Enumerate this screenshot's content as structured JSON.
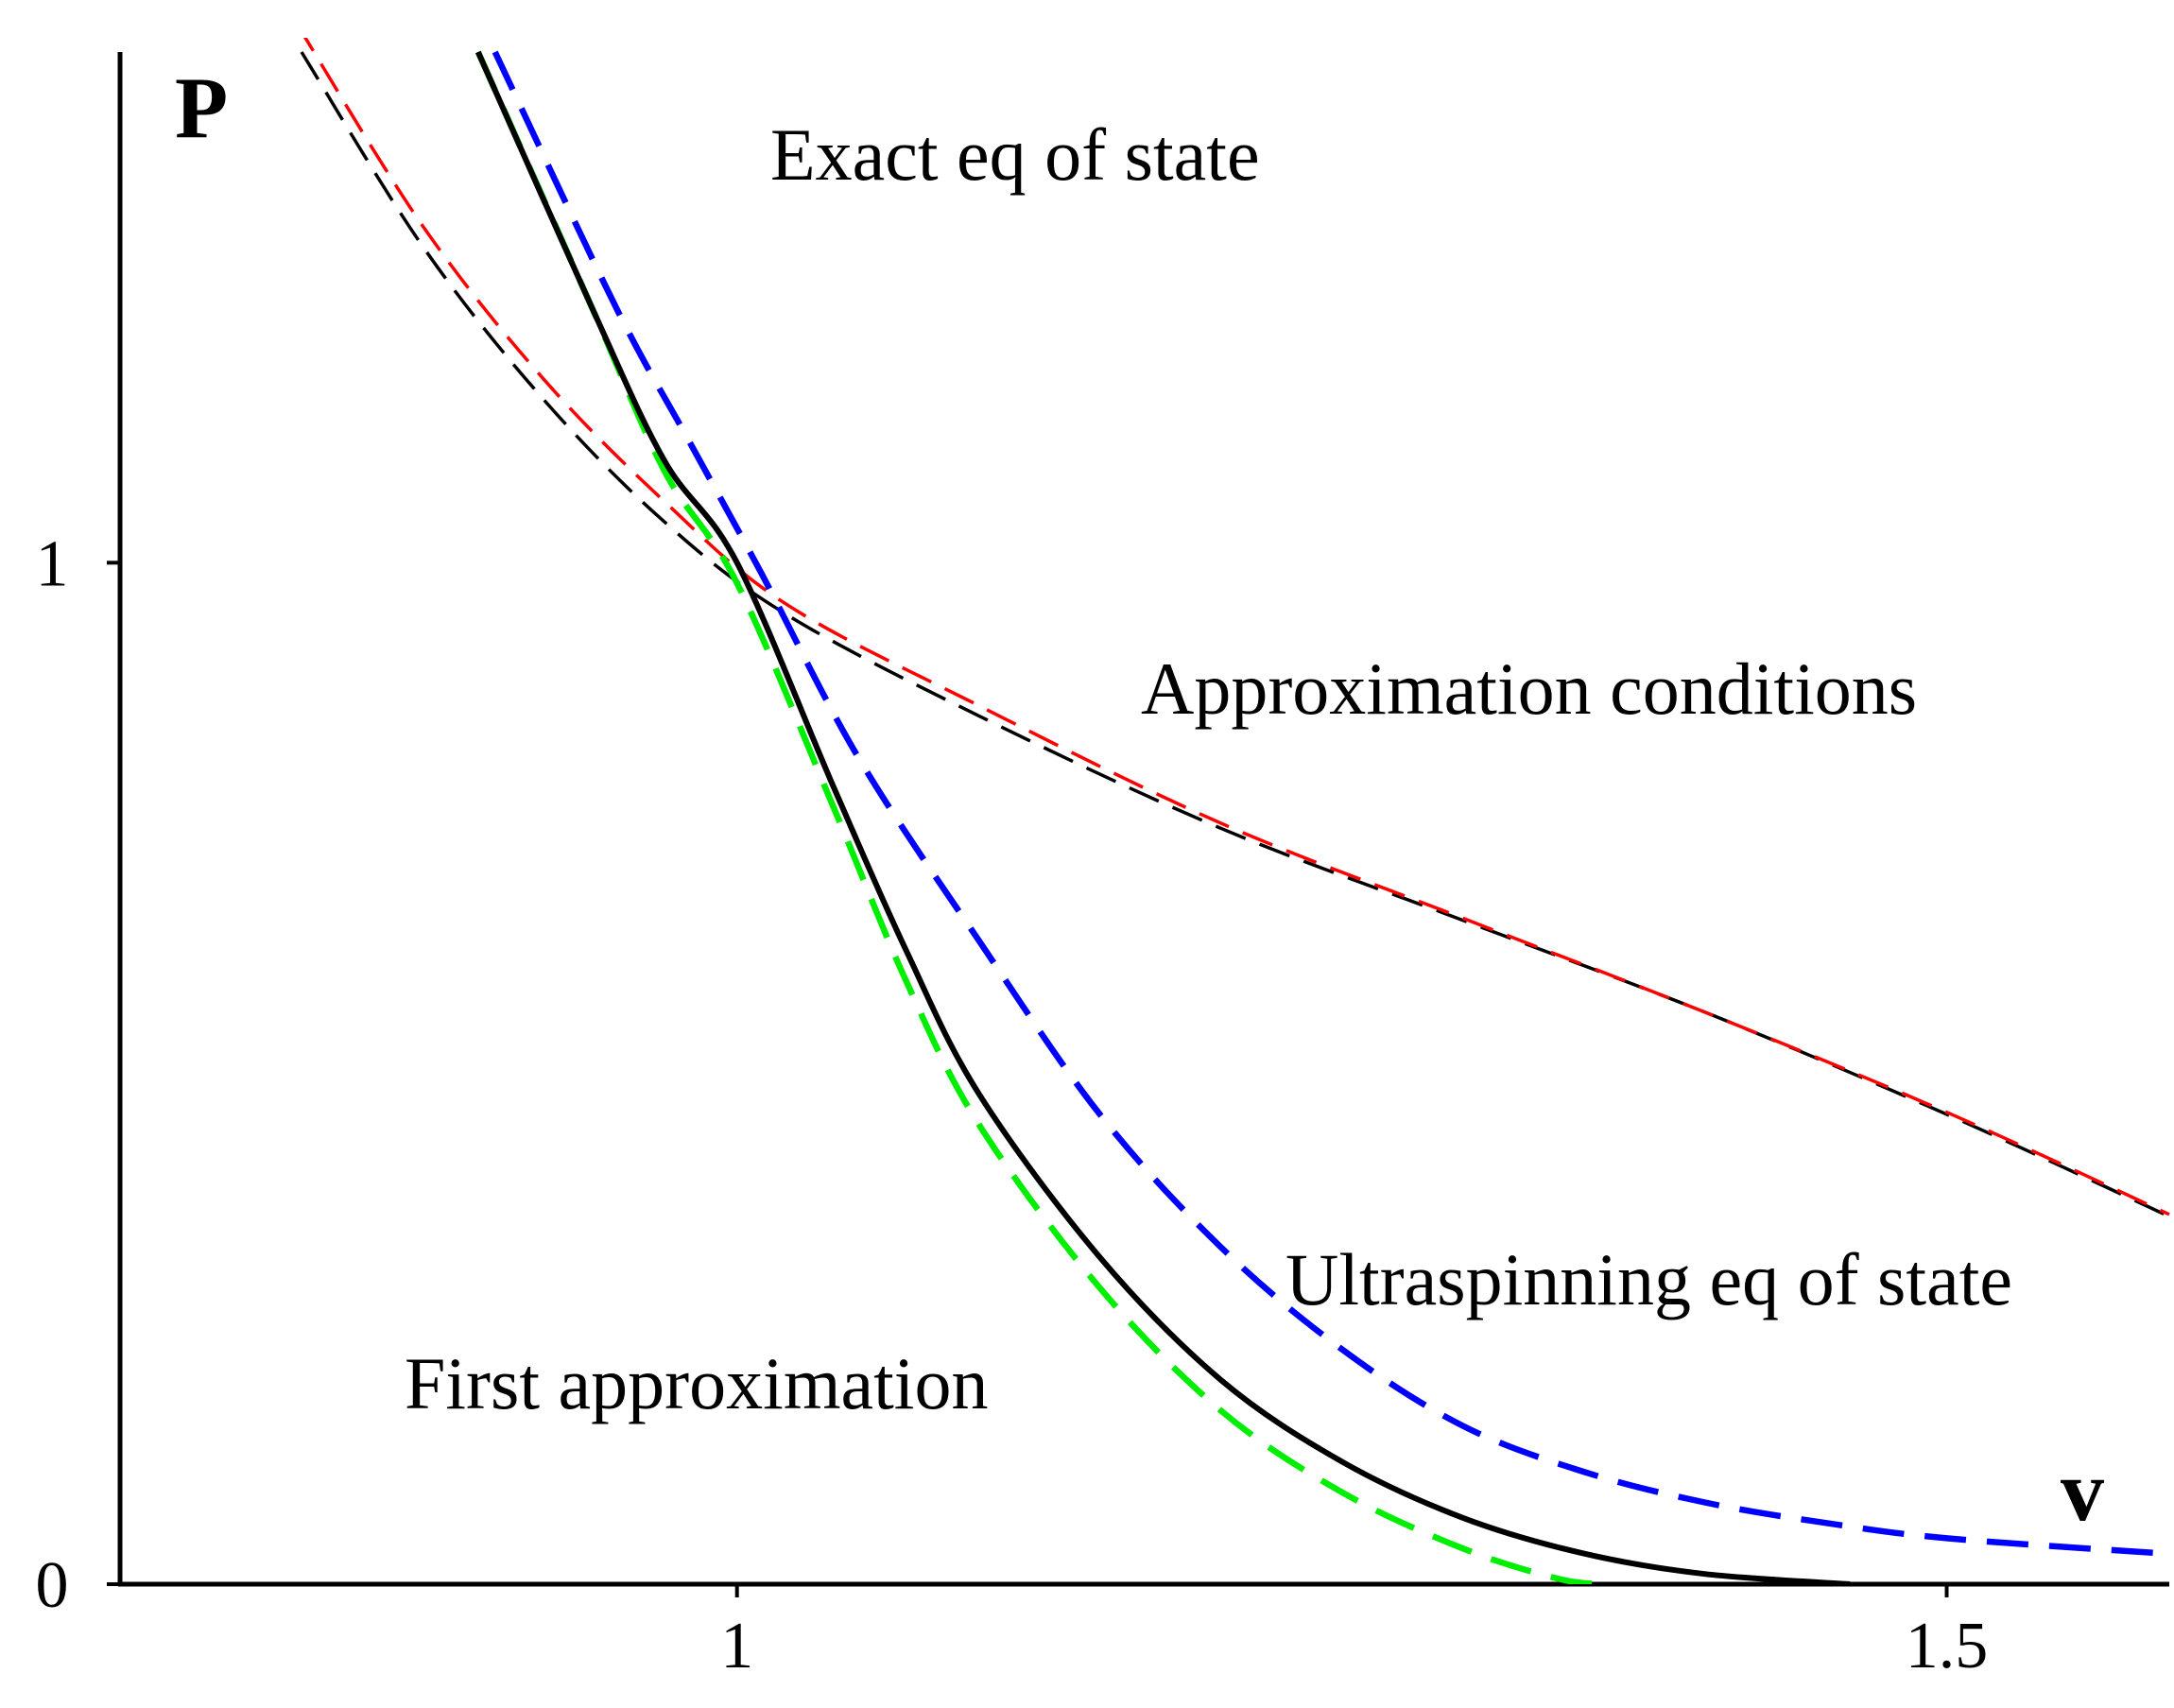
{
  "chart_data": {
    "type": "line",
    "title": "",
    "xlabel": "v",
    "ylabel": "P",
    "xlim": [
      0.745,
      1.592
    ],
    "ylim": [
      0,
      1.5
    ],
    "grid": false,
    "x_ticks": [
      {
        "value": 1,
        "label": "1"
      },
      {
        "value": 1.5,
        "label": "1.5"
      }
    ],
    "y_ticks": [
      {
        "value": 0,
        "label": "0"
      },
      {
        "value": 1,
        "label": "1"
      }
    ],
    "series": [
      {
        "name": "Exact eq of state",
        "color": "#000000",
        "style": "solid",
        "points": [
          [
            0.893,
            1.5
          ],
          [
            0.94,
            1.25
          ],
          [
            0.97,
            1.1
          ],
          [
            1.0,
            1.0
          ],
          [
            1.04,
            0.78
          ],
          [
            1.07,
            0.62
          ],
          [
            1.1,
            0.48
          ],
          [
            1.15,
            0.32
          ],
          [
            1.2,
            0.2
          ],
          [
            1.25,
            0.12
          ],
          [
            1.3,
            0.065
          ],
          [
            1.35,
            0.03
          ],
          [
            1.4,
            0.01
          ],
          [
            1.46,
            0.0
          ]
        ]
      },
      {
        "name": "Ultraspinning eq of state",
        "color": "#0000ff",
        "style": "dashed",
        "points": [
          [
            0.9,
            1.5
          ],
          [
            0.95,
            1.25
          ],
          [
            0.98,
            1.12
          ],
          [
            1.01,
            0.99
          ],
          [
            1.05,
            0.81
          ],
          [
            1.1,
            0.63
          ],
          [
            1.15,
            0.46
          ],
          [
            1.2,
            0.33
          ],
          [
            1.25,
            0.23
          ],
          [
            1.3,
            0.155
          ],
          [
            1.35,
            0.11
          ],
          [
            1.4,
            0.08
          ],
          [
            1.45,
            0.06
          ],
          [
            1.5,
            0.045
          ],
          [
            1.59,
            0.03
          ]
        ]
      },
      {
        "name": "First approximation",
        "color": "#00ee00",
        "style": "dashed",
        "points": [
          [
            0.893,
            1.5
          ],
          [
            0.94,
            1.25
          ],
          [
            0.97,
            1.09
          ],
          [
            1.0,
            0.98
          ],
          [
            1.04,
            0.76
          ],
          [
            1.07,
            0.59
          ],
          [
            1.1,
            0.45
          ],
          [
            1.15,
            0.29
          ],
          [
            1.2,
            0.17
          ],
          [
            1.25,
            0.09
          ],
          [
            1.3,
            0.035
          ],
          [
            1.34,
            0.005
          ],
          [
            1.36,
            0.0
          ]
        ]
      },
      {
        "name": "Approximation conditions (black)",
        "color": "#000000",
        "style": "dashed",
        "points": [
          [
            0.82,
            1.5
          ],
          [
            0.87,
            1.31
          ],
          [
            0.92,
            1.16
          ],
          [
            0.97,
            1.04
          ],
          [
            1.02,
            0.95
          ],
          [
            1.1,
            0.85
          ],
          [
            1.2,
            0.74
          ],
          [
            1.3,
            0.65
          ],
          [
            1.4,
            0.56
          ],
          [
            1.5,
            0.46
          ],
          [
            1.592,
            0.36
          ]
        ]
      },
      {
        "name": "Approximation conditions (red)",
        "color": "#ff0000",
        "style": "dashed",
        "points": [
          [
            0.82,
            1.52
          ],
          [
            0.87,
            1.33
          ],
          [
            0.92,
            1.18
          ],
          [
            0.97,
            1.06
          ],
          [
            1.02,
            0.96
          ],
          [
            1.1,
            0.86
          ],
          [
            1.2,
            0.745
          ],
          [
            1.3,
            0.652
          ],
          [
            1.4,
            0.56
          ],
          [
            1.5,
            0.462
          ],
          [
            1.592,
            0.362
          ]
        ]
      }
    ],
    "annotations": [
      {
        "text": "Exact eq of state",
        "x": 1.03,
        "y": 1.4
      },
      {
        "text": "Approximation conditions",
        "x": 1.3,
        "y": 0.87
      },
      {
        "text": "Ultraspinning eq of state",
        "x": 1.4,
        "y": 0.29
      },
      {
        "text": "First approximation",
        "x": 1.0,
        "y": 0.19
      }
    ]
  }
}
